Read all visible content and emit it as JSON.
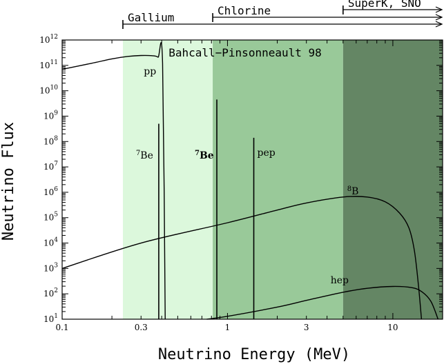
{
  "chart_data": {
    "type": "line",
    "title": "Bahcall−Pinsonneault 98",
    "xlabel": "Neutrino Energy (MeV)",
    "ylabel": "Neutrino Flux",
    "x_scale": "log",
    "y_scale": "log",
    "xlim": [
      0.1,
      20
    ],
    "ylim": [
      10,
      1000000000000
    ],
    "x_ticks": [
      {
        "value": 0.1,
        "label": "0.1"
      },
      {
        "value": 0.3,
        "label": "0.3"
      },
      {
        "value": 1,
        "label": "1"
      },
      {
        "value": 3,
        "label": "3"
      },
      {
        "value": 10,
        "label": "10"
      }
    ],
    "y_ticks": [
      {
        "exp": 1,
        "base": "10",
        "sup": "1"
      },
      {
        "exp": 2,
        "base": "10",
        "sup": "2"
      },
      {
        "exp": 3,
        "base": "10",
        "sup": "3"
      },
      {
        "exp": 4,
        "base": "10",
        "sup": "4"
      },
      {
        "exp": 5,
        "base": "10",
        "sup": "5"
      },
      {
        "exp": 6,
        "base": "10",
        "sup": "6"
      },
      {
        "exp": 7,
        "base": "10",
        "sup": "7"
      },
      {
        "exp": 8,
        "base": "10",
        "sup": "8"
      },
      {
        "exp": 9,
        "base": "10",
        "sup": "9"
      },
      {
        "exp": 10,
        "base": "10",
        "sup": "10"
      },
      {
        "exp": 11,
        "base": "10",
        "sup": "11"
      },
      {
        "exp": 12,
        "base": "10",
        "sup": "12"
      }
    ],
    "detector_ranges": [
      {
        "name": "Gallium",
        "threshold": 0.233,
        "color": "#dcf8dc"
      },
      {
        "name": "Chlorine",
        "threshold": 0.814,
        "color": "#99c999"
      },
      {
        "name": "SuperK, SNO",
        "threshold": 5.0,
        "color": "#648664"
      }
    ],
    "series": [
      {
        "name": "pp",
        "label": "pp",
        "x": [
          0.1,
          0.15,
          0.2,
          0.25,
          0.3,
          0.35,
          0.38,
          0.405,
          0.42
        ],
        "y": [
          70000000000,
          120000000000,
          180000000000,
          225000000000,
          245000000000,
          240000000000,
          210000000000,
          120000000000,
          10
        ]
      },
      {
        "name": "8B",
        "label": "B",
        "label_sup": "8",
        "x": [
          0.1,
          0.3,
          1,
          2,
          3,
          5,
          7,
          9,
          11,
          12.5,
          13.5,
          14.3,
          14.9
        ],
        "y": [
          1000,
          10000,
          63000,
          200000,
          380000,
          650000,
          650000,
          420000,
          150000,
          40000,
          5000,
          200,
          10
        ]
      },
      {
        "name": "hep",
        "label": "hep",
        "x": [
          0.75,
          1,
          2,
          3,
          5,
          7,
          10,
          13,
          15,
          17,
          18.77
        ],
        "y": [
          10,
          13,
          30,
          55,
          115,
          165,
          195,
          175,
          120,
          50,
          10
        ]
      }
    ],
    "lines": [
      {
        "name": "7Be",
        "label": "Be",
        "label_sup": "7",
        "bold": false,
        "energy": 0.384,
        "flux": 500000000
      },
      {
        "name": "7Be",
        "label": "Be",
        "label_sup": "7",
        "bold": true,
        "energy": 0.862,
        "flux": 4500000000
      },
      {
        "name": "pep",
        "label": "pep",
        "bold": false,
        "energy": 1.442,
        "flux": 140000000
      }
    ]
  }
}
